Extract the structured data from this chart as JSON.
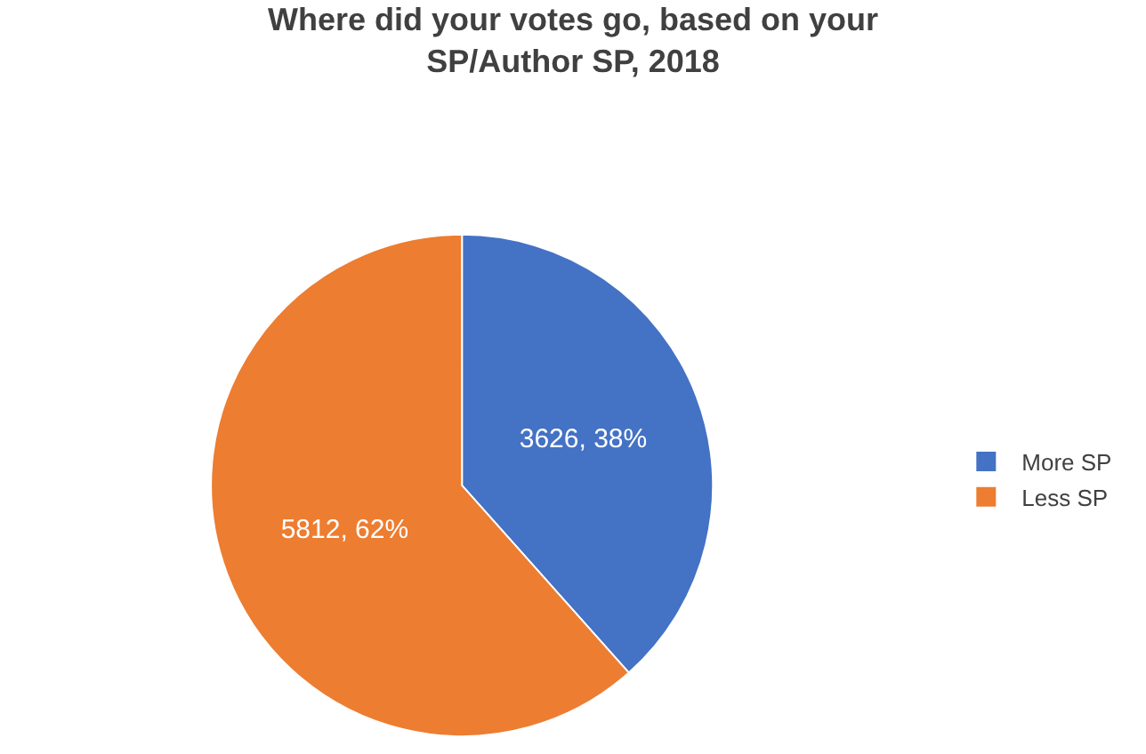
{
  "chart_data": {
    "type": "pie",
    "title": "Where did your votes go, based on your SP/Author SP, 2018",
    "categories": [
      "More SP",
      "Less SP"
    ],
    "values": [
      3626,
      5812
    ],
    "colors": [
      "#4472c4",
      "#ed7d31"
    ],
    "value_labels": [
      "3626, 38%",
      "5812, 62%"
    ],
    "legend": "right"
  }
}
